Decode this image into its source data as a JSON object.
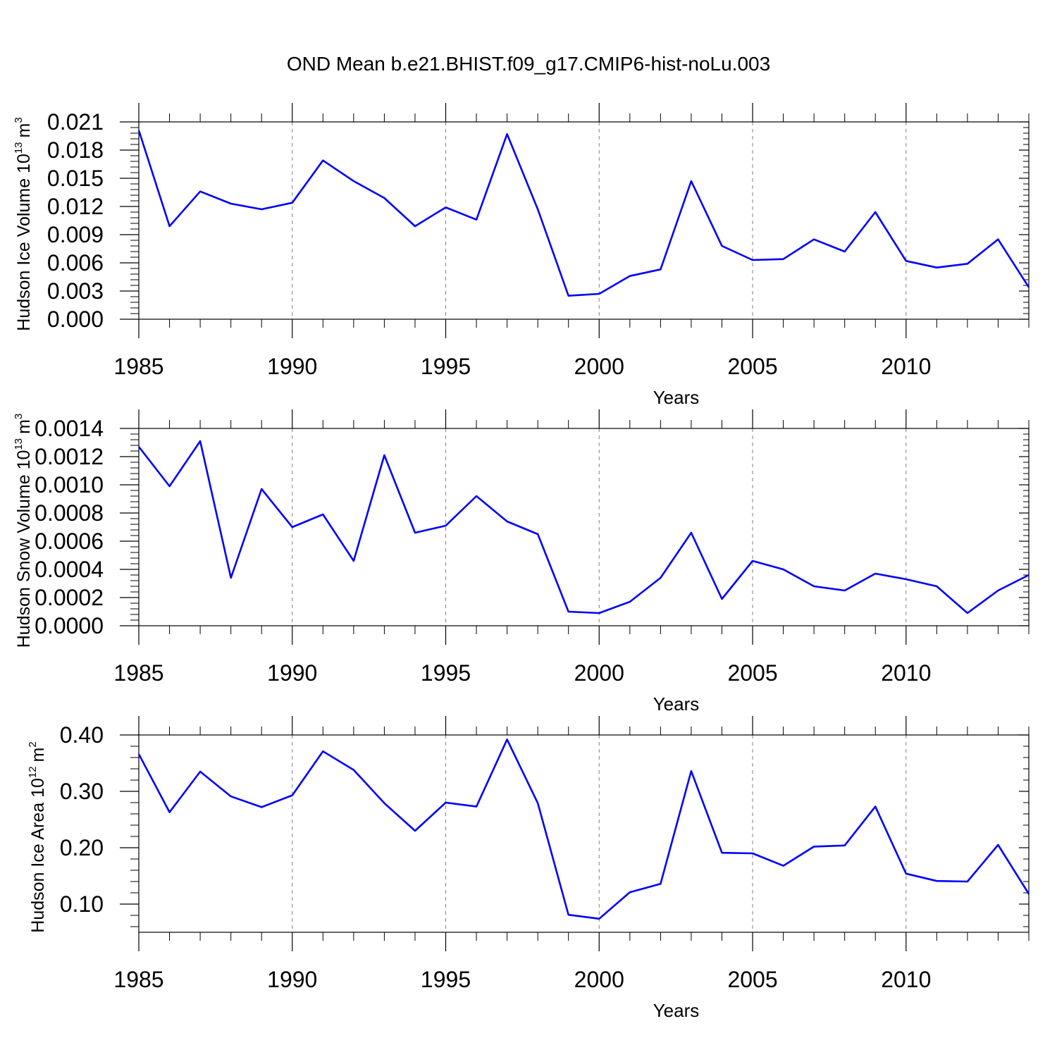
{
  "figure": {
    "title": "OND Mean b.e21.BHIST.f09_g17.CMIP6-hist-noLu.003"
  },
  "colors": {
    "line": "#0000ff",
    "axis": "#000000",
    "grid": "#808080"
  },
  "chart_data": [
    {
      "type": "line",
      "ylabel_main": "Hudson Ice Volume 10",
      "ylabel_exp": "13",
      "ylabel_unit": "m",
      "ylabel_unit_exp": "3",
      "xlabel": "Years",
      "xlim": [
        1985,
        2014
      ],
      "ylim": [
        0,
        0.021
      ],
      "x_ticks": [
        1985,
        1990,
        1995,
        2000,
        2005,
        2010
      ],
      "x_tick_labels": [
        "1985",
        "1990",
        "1995",
        "2000",
        "2005",
        "2010"
      ],
      "y_ticks": [
        0,
        0.003,
        0.006,
        0.009,
        0.012,
        0.015,
        0.018,
        0.021
      ],
      "y_tick_labels": [
        "0.000",
        "0.003",
        "0.006",
        "0.009",
        "0.012",
        "0.015",
        "0.018",
        "0.021"
      ],
      "grid": "vertical dashed at major x ticks",
      "x": [
        1985,
        1986,
        1987,
        1988,
        1989,
        1990,
        1991,
        1992,
        1993,
        1994,
        1995,
        1996,
        1997,
        1998,
        1999,
        2000,
        2001,
        2002,
        2003,
        2004,
        2005,
        2006,
        2007,
        2008,
        2009,
        2010,
        2011,
        2012,
        2013,
        2014
      ],
      "values": [
        0.0201,
        0.0099,
        0.0136,
        0.0123,
        0.0117,
        0.0124,
        0.0169,
        0.0147,
        0.0129,
        0.0099,
        0.0119,
        0.0106,
        0.0197,
        0.0117,
        0.0025,
        0.0027,
        0.0046,
        0.0053,
        0.0147,
        0.0078,
        0.0063,
        0.0064,
        0.0085,
        0.0072,
        0.0114,
        0.0062,
        0.0055,
        0.0059,
        0.0085,
        0.0034
      ]
    },
    {
      "type": "line",
      "ylabel_main": "Hudson Snow Volume 10",
      "ylabel_exp": "13",
      "ylabel_unit": "m",
      "ylabel_unit_exp": "3",
      "xlabel": "Years",
      "xlim": [
        1985,
        2014
      ],
      "ylim": [
        0,
        0.0014
      ],
      "x_ticks": [
        1985,
        1990,
        1995,
        2000,
        2005,
        2010
      ],
      "x_tick_labels": [
        "1985",
        "1990",
        "1995",
        "2000",
        "2005",
        "2010"
      ],
      "y_ticks": [
        0,
        0.0002,
        0.0004,
        0.0006,
        0.0008,
        0.001,
        0.0012,
        0.0014
      ],
      "y_tick_labels": [
        "0.0000",
        "0.0002",
        "0.0004",
        "0.0006",
        "0.0008",
        "0.0010",
        "0.0012",
        "0.0014"
      ],
      "grid": "vertical dashed at major x ticks",
      "x": [
        1985,
        1986,
        1987,
        1988,
        1989,
        1990,
        1991,
        1992,
        1993,
        1994,
        1995,
        1996,
        1997,
        1998,
        1999,
        2000,
        2001,
        2002,
        2003,
        2004,
        2005,
        2006,
        2007,
        2008,
        2009,
        2010,
        2011,
        2012,
        2013,
        2014
      ],
      "values": [
        0.00127,
        0.00099,
        0.00131,
        0.00034,
        0.00097,
        0.0007,
        0.00079,
        0.00046,
        0.00121,
        0.00066,
        0.00071,
        0.00092,
        0.00074,
        0.00065,
        0.0001,
        9e-05,
        0.00017,
        0.00034,
        0.00066,
        0.00019,
        0.00046,
        0.0004,
        0.00028,
        0.00025,
        0.00037,
        0.00033,
        0.00028,
        9e-05,
        0.00025,
        0.00036
      ]
    },
    {
      "type": "line",
      "ylabel_main": "Hudson Ice Area 10",
      "ylabel_exp": "12",
      "ylabel_unit": "m",
      "ylabel_unit_exp": "2",
      "xlabel": "Years",
      "xlim": [
        1985,
        2014
      ],
      "ylim": [
        0.05,
        0.4
      ],
      "x_ticks": [
        1985,
        1990,
        1995,
        2000,
        2005,
        2010
      ],
      "x_tick_labels": [
        "1985",
        "1990",
        "1995",
        "2000",
        "2005",
        "2010"
      ],
      "y_ticks": [
        0.1,
        0.2,
        0.3,
        0.4
      ],
      "y_tick_labels": [
        "0.10",
        "0.20",
        "0.30",
        "0.40"
      ],
      "grid": "vertical dashed at major x ticks",
      "x": [
        1985,
        1986,
        1987,
        1988,
        1989,
        1990,
        1991,
        1992,
        1993,
        1994,
        1995,
        1996,
        1997,
        1998,
        1999,
        2000,
        2001,
        2002,
        2003,
        2004,
        2005,
        2006,
        2007,
        2008,
        2009,
        2010,
        2011,
        2012,
        2013,
        2014
      ],
      "values": [
        0.366,
        0.263,
        0.335,
        0.291,
        0.272,
        0.293,
        0.371,
        0.338,
        0.279,
        0.23,
        0.28,
        0.273,
        0.392,
        0.279,
        0.081,
        0.074,
        0.121,
        0.136,
        0.336,
        0.191,
        0.19,
        0.168,
        0.202,
        0.204,
        0.273,
        0.154,
        0.141,
        0.14,
        0.205,
        0.118
      ]
    }
  ]
}
